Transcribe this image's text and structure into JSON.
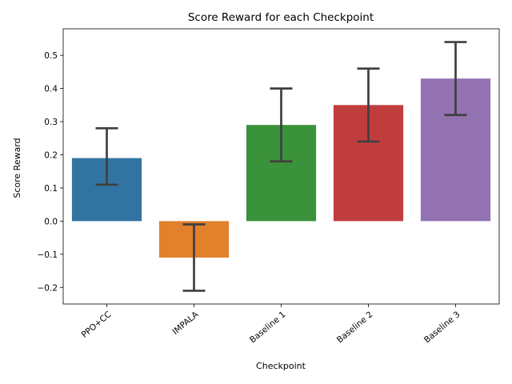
{
  "chart_data": {
    "type": "bar",
    "title": "Score Reward for each Checkpoint",
    "xlabel": "Checkpoint",
    "ylabel": "Score Reward",
    "categories": [
      "PPO+CC",
      "IMPALA",
      "Baseline 1",
      "Baseline 2",
      "Baseline 3"
    ],
    "values": [
      0.19,
      -0.11,
      0.29,
      0.35,
      0.43
    ],
    "error_low": [
      0.11,
      -0.21,
      0.18,
      0.24,
      0.32
    ],
    "error_high": [
      0.28,
      -0.01,
      0.4,
      0.46,
      0.54
    ],
    "colors": [
      "#3274a1",
      "#e1812c",
      "#3a923a",
      "#c03d3e",
      "#9372b2"
    ],
    "ylim": [
      -0.25,
      0.58
    ],
    "yticks": [
      -0.2,
      -0.1,
      0.0,
      0.1,
      0.2,
      0.3,
      0.4,
      0.5
    ],
    "ytick_labels": [
      "−0.2",
      "−0.1",
      "0.0",
      "0.1",
      "0.2",
      "0.3",
      "0.4",
      "0.5"
    ],
    "grid": false,
    "legend": "none"
  }
}
